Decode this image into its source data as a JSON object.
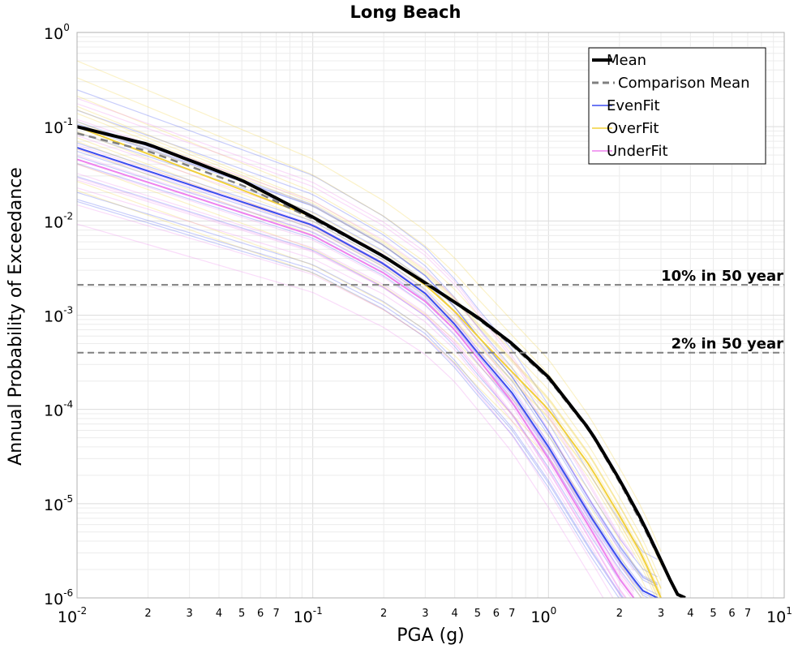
{
  "chart_data": {
    "type": "line",
    "title": "Long Beach",
    "xlabel": "PGA (g)",
    "ylabel": "Annual Probability of Exceedance",
    "x_scale": "log",
    "y_scale": "log",
    "xlim": [
      0.01,
      10
    ],
    "ylim": [
      1e-06,
      1
    ],
    "grid": true,
    "legend_position": "top-right",
    "x_major_ticks": [
      {
        "base": "10",
        "exp": "-2",
        "value": 0.01
      },
      {
        "base": "10",
        "exp": "-1",
        "value": 0.1
      },
      {
        "base": "10",
        "exp": "0",
        "value": 1
      },
      {
        "base": "10",
        "exp": "1",
        "value": 10
      }
    ],
    "y_major_ticks": [
      {
        "base": "10",
        "exp": "0",
        "value": 1
      },
      {
        "base": "10",
        "exp": "-1",
        "value": 0.1
      },
      {
        "base": "10",
        "exp": "-2",
        "value": 0.01
      },
      {
        "base": "10",
        "exp": "-3",
        "value": 0.001
      },
      {
        "base": "10",
        "exp": "-4",
        "value": 0.0001
      },
      {
        "base": "10",
        "exp": "-5",
        "value": 1e-05
      },
      {
        "base": "10",
        "exp": "-6",
        "value": 1e-06
      }
    ],
    "x_minor_tick_labels": [
      "2",
      "3",
      "4",
      "5",
      "6",
      "7"
    ],
    "series": [
      {
        "name": "Mean",
        "color": "#000000",
        "style": "solid",
        "x": [
          0.01,
          0.02,
          0.05,
          0.1,
          0.2,
          0.3,
          0.5,
          0.7,
          1.0,
          1.5,
          2.0,
          2.5,
          3.0,
          3.5,
          3.8
        ],
        "y": [
          0.1,
          0.065,
          0.027,
          0.011,
          0.0042,
          0.0022,
          0.00095,
          0.0005,
          0.00022,
          6e-05,
          1.8e-05,
          6.5e-06,
          2.5e-06,
          1.1e-06,
          1e-06
        ]
      },
      {
        "name": "Comparison Mean",
        "color": "#808080",
        "style": "dashed",
        "x": [
          0.01,
          0.02,
          0.05,
          0.1,
          0.2,
          0.3,
          0.5,
          0.7,
          1.0,
          1.5,
          2.0,
          2.5,
          3.0,
          3.5,
          3.8
        ],
        "y": [
          0.085,
          0.055,
          0.024,
          0.0105,
          0.0042,
          0.0022,
          0.00092,
          0.00048,
          0.00021,
          5.8e-05,
          1.7e-05,
          6e-06,
          2.4e-06,
          1.1e-06,
          1e-06
        ]
      },
      {
        "name": "EvenFit",
        "color": "#3b4cf0",
        "style": "solid",
        "x": [
          0.01,
          0.1,
          0.2,
          0.3,
          0.4,
          0.5,
          0.7,
          1.0,
          1.5,
          2.0,
          2.5,
          2.9
        ],
        "y": [
          0.06,
          0.009,
          0.0035,
          0.0017,
          0.0008,
          0.0004,
          0.00015,
          4e-05,
          7.5e-06,
          2.5e-06,
          1.2e-06,
          1e-06
        ]
      },
      {
        "name": "OverFit",
        "color": "#f2d03a",
        "style": "solid",
        "x": [
          0.01,
          0.1,
          0.2,
          0.3,
          0.4,
          0.5,
          0.7,
          1.0,
          1.5,
          2.0,
          2.5,
          3.0
        ],
        "y": [
          0.1,
          0.011,
          0.0042,
          0.0021,
          0.0011,
          0.0006,
          0.00025,
          0.0001,
          2.5e-05,
          7.5e-06,
          2.8e-06,
          1e-06
        ]
      },
      {
        "name": "UnderFit",
        "color": "#ee82ee",
        "style": "solid",
        "x": [
          0.01,
          0.1,
          0.2,
          0.3,
          0.4,
          0.5,
          0.7,
          1.0,
          1.5,
          2.0,
          2.3
        ],
        "y": [
          0.045,
          0.007,
          0.0028,
          0.0014,
          0.0007,
          0.00035,
          0.00012,
          3e-05,
          5.5e-06,
          1.6e-06,
          1e-06
        ]
      }
    ],
    "reference_lines": [
      {
        "label": "10% in 50 year",
        "y": 0.0021
      },
      {
        "label": "2% in 50 year",
        "y": 0.0004
      }
    ]
  },
  "legend": {
    "items": [
      {
        "label": "Mean",
        "color": "#000000",
        "style": "solid-thick"
      },
      {
        "label": "Comparison Mean",
        "color": "#808080",
        "style": "dashed"
      },
      {
        "label": "EvenFit",
        "color": "#3b4cf0",
        "style": "solid"
      },
      {
        "label": "OverFit",
        "color": "#f2d03a",
        "style": "solid"
      },
      {
        "label": "UnderFit",
        "color": "#ee82ee",
        "style": "solid"
      }
    ]
  }
}
